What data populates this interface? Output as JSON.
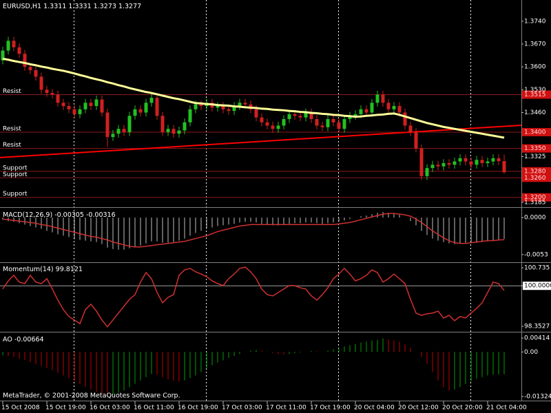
{
  "chart_data": [
    {
      "type": "candlestick",
      "title": "EURUSD,H1",
      "categories": [
        "15 Oct 2008",
        null,
        null,
        null,
        null,
        null,
        null,
        null,
        "15 Oct 19:00",
        null,
        null,
        null,
        null,
        null,
        null,
        null,
        "16 Oct 03:00",
        null,
        null,
        null,
        null,
        null,
        null,
        null,
        "16 Oct 11:00",
        null,
        null,
        null,
        null,
        null,
        null,
        null,
        "16 Oct 19:00",
        null,
        null,
        null,
        null,
        null,
        null,
        null,
        "17 Oct 03:00",
        null,
        null,
        null,
        null,
        null,
        null,
        null,
        "17 Oct 11:00",
        null,
        null,
        null,
        null,
        null,
        null,
        null,
        "17 Oct 19:00",
        null,
        null,
        null,
        null,
        null,
        null,
        null,
        "20 Oct 04:00",
        null,
        null,
        null,
        null,
        null,
        null,
        null,
        "20 Oct 12:00",
        null,
        null,
        null,
        null,
        null,
        null,
        null,
        "20 Oct 20:00",
        null,
        null,
        null,
        null,
        null,
        null,
        null,
        "21 Oct 04:00",
        null,
        null,
        null
      ],
      "open": [
        1.362,
        1.365,
        1.368,
        1.366,
        1.364,
        1.36,
        1.359,
        1.357,
        1.353,
        1.352,
        1.3515,
        1.349,
        1.348,
        1.347,
        1.3455,
        1.347,
        1.349,
        1.348,
        1.35,
        1.346,
        1.3385,
        1.3395,
        1.341,
        1.34,
        1.345,
        1.347,
        1.346,
        1.349,
        1.3505,
        1.345,
        1.34,
        1.341,
        1.3395,
        1.3405,
        1.343,
        1.347,
        1.3485,
        1.348,
        1.349,
        1.3475,
        1.348,
        1.347,
        1.3465,
        1.348,
        1.349,
        1.3485,
        1.347,
        1.3445,
        1.343,
        1.342,
        1.341,
        1.342,
        1.344,
        1.3455,
        1.345,
        1.3445,
        1.346,
        1.344,
        1.342,
        1.3415,
        1.344,
        1.343,
        1.341,
        1.344,
        1.345,
        1.3455,
        1.347,
        1.346,
        1.349,
        1.3515,
        1.349,
        1.347,
        1.348,
        1.346,
        1.342,
        1.34,
        1.335,
        1.3265,
        1.329,
        1.33,
        1.3295,
        1.3305,
        1.33,
        1.331,
        1.332,
        1.331,
        1.33,
        1.3315,
        1.3305,
        1.331,
        1.332,
        1.3311
      ],
      "high": [
        1.3662,
        1.3692,
        1.3692,
        1.3672,
        1.3652,
        1.3612,
        1.3602,
        1.3582,
        1.3542,
        1.3532,
        1.3527,
        1.3502,
        1.3492,
        1.3482,
        1.3482,
        1.3502,
        1.3502,
        1.3512,
        1.3512,
        1.3472,
        1.3407,
        1.3422,
        1.3422,
        1.3462,
        1.3482,
        1.3482,
        1.3502,
        1.3517,
        1.3517,
        1.3462,
        1.3422,
        1.3422,
        1.3417,
        1.3442,
        1.3482,
        1.3497,
        1.3497,
        1.3502,
        1.3502,
        1.3492,
        1.3492,
        1.3482,
        1.3492,
        1.3502,
        1.3502,
        1.3497,
        1.3482,
        1.3457,
        1.3442,
        1.3432,
        1.3432,
        1.3452,
        1.3467,
        1.3467,
        1.3462,
        1.3472,
        1.3472,
        1.3452,
        1.3432,
        1.3452,
        1.3452,
        1.3442,
        1.3452,
        1.3462,
        1.3467,
        1.3482,
        1.3482,
        1.3502,
        1.3527,
        1.3527,
        1.3502,
        1.3492,
        1.3492,
        1.3472,
        1.3432,
        1.3412,
        1.3362,
        1.3302,
        1.3312,
        1.3312,
        1.3317,
        1.3317,
        1.3322,
        1.3332,
        1.3332,
        1.3322,
        1.3327,
        1.3327,
        1.3322,
        1.3332,
        1.3332,
        1.3331
      ],
      "low": [
        1.3608,
        1.3638,
        1.3648,
        1.3628,
        1.3588,
        1.3578,
        1.3558,
        1.3518,
        1.3508,
        1.3503,
        1.3478,
        1.3468,
        1.3458,
        1.3443,
        1.3443,
        1.3458,
        1.3468,
        1.3468,
        1.3448,
        1.3355,
        1.3373,
        1.3383,
        1.3388,
        1.3388,
        1.3438,
        1.3448,
        1.3448,
        1.3478,
        1.3438,
        1.3388,
        1.3388,
        1.3383,
        1.3383,
        1.3393,
        1.3418,
        1.3458,
        1.3468,
        1.3468,
        1.3463,
        1.3463,
        1.3458,
        1.3453,
        1.3453,
        1.3468,
        1.3473,
        1.3458,
        1.3433,
        1.3418,
        1.3408,
        1.3398,
        1.3398,
        1.3408,
        1.3428,
        1.3438,
        1.3433,
        1.3433,
        1.3428,
        1.3408,
        1.3403,
        1.3403,
        1.3418,
        1.3398,
        1.3398,
        1.3428,
        1.3438,
        1.3443,
        1.3448,
        1.3448,
        1.3478,
        1.3478,
        1.3458,
        1.3458,
        1.3448,
        1.3408,
        1.3388,
        1.3338,
        1.3253,
        1.3253,
        1.3278,
        1.3283,
        1.3283,
        1.3288,
        1.3288,
        1.3298,
        1.3298,
        1.3288,
        1.3288,
        1.3293,
        1.3293,
        1.3298,
        1.3299,
        1.3273
      ],
      "close": [
        1.365,
        1.368,
        1.366,
        1.364,
        1.36,
        1.359,
        1.357,
        1.353,
        1.352,
        1.3515,
        1.349,
        1.348,
        1.347,
        1.3455,
        1.347,
        1.349,
        1.348,
        1.35,
        1.346,
        1.3385,
        1.3395,
        1.341,
        1.34,
        1.345,
        1.347,
        1.346,
        1.349,
        1.3505,
        1.345,
        1.34,
        1.341,
        1.3395,
        1.3405,
        1.343,
        1.347,
        1.3485,
        1.348,
        1.349,
        1.3475,
        1.348,
        1.347,
        1.3465,
        1.348,
        1.349,
        1.3485,
        1.347,
        1.3445,
        1.343,
        1.342,
        1.341,
        1.342,
        1.344,
        1.3455,
        1.345,
        1.3445,
        1.346,
        1.344,
        1.342,
        1.3415,
        1.344,
        1.343,
        1.341,
        1.344,
        1.345,
        1.3455,
        1.347,
        1.346,
        1.349,
        1.3515,
        1.349,
        1.347,
        1.348,
        1.346,
        1.342,
        1.34,
        1.335,
        1.3265,
        1.329,
        1.33,
        1.3295,
        1.3305,
        1.33,
        1.331,
        1.332,
        1.331,
        1.33,
        1.3315,
        1.3305,
        1.331,
        1.332,
        1.3311,
        1.3277
      ],
      "up_color": "#22c022",
      "down_color": "#d02020",
      "ma": {
        "color": "#ffff99",
        "values": [
          1.3625,
          1.3622,
          1.3618,
          1.3615,
          1.3612,
          1.3608,
          1.3605,
          1.3601,
          1.3598,
          1.3594,
          1.3591,
          1.3588,
          1.3584,
          1.358,
          1.3575,
          1.3571,
          1.3566,
          1.3562,
          1.3558,
          1.3553,
          1.3549,
          1.3544,
          1.354,
          1.3535,
          1.3531,
          1.3527,
          1.3523,
          1.352,
          1.3516,
          1.3512,
          1.3508,
          1.3504,
          1.3501,
          1.3497,
          1.3493,
          1.3489,
          1.3488,
          1.3486,
          1.3485,
          1.3483,
          1.3482,
          1.3481,
          1.3479,
          1.3478,
          1.3476,
          1.3475,
          1.3474,
          1.3472,
          1.3471,
          1.3469,
          1.3468,
          1.3467,
          1.3465,
          1.3464,
          1.3462,
          1.3461,
          1.3459,
          1.3458,
          1.3456,
          1.3455,
          1.3453,
          1.3452,
          1.345,
          1.3449,
          1.3447,
          1.3448,
          1.345,
          1.3451,
          1.3453,
          1.3454,
          1.3456,
          1.3457,
          1.3453,
          1.3448,
          1.3443,
          1.3438,
          1.3433,
          1.3428,
          1.3424,
          1.342,
          1.3416,
          1.3413,
          1.341,
          1.3407,
          1.3404,
          1.3401,
          1.3398,
          1.3395,
          1.3392,
          1.3389,
          1.3386,
          1.3383
        ]
      },
      "trendline": {
        "color": "#ff0000",
        "values": [
          1.3322,
          1.3421
        ]
      },
      "level_color": "#8b1a1a",
      "levels": [
        {
          "name": "Resist",
          "price": {
            "value": 1.3515,
            "label": "1.3515"
          }
        },
        {
          "name": "Resist",
          "price": {
            "value": 1.34,
            "label": "1.3400"
          }
        },
        {
          "name": "Resist",
          "price": {
            "value": 1.335,
            "label": "1.3350"
          }
        },
        {
          "name": "Support",
          "price": {
            "value": 1.328,
            "label": "1.3280"
          }
        },
        {
          "name": "Support",
          "price": {
            "value": 1.326,
            "label": "1.3260"
          }
        },
        {
          "name": "Support",
          "price": {
            "value": 1.32,
            "label": "1.3200"
          }
        }
      ],
      "ylim": [
        1.3172,
        1.3805
      ],
      "yticks": [
        {
          "value": 1.374,
          "label": "1.3740"
        },
        {
          "value": 1.367,
          "label": "1.3670"
        },
        {
          "value": 1.36,
          "label": "1.3600"
        },
        {
          "value": 1.353,
          "label": "1.3530"
        },
        {
          "value": 1.346,
          "label": "1.3460"
        },
        1.3325,
        1.3185
      ]
    },
    {
      "type": "macd",
      "title": "MACD(12,26,9)",
      "histogram": {
        "color": "#c0c0c0",
        "values": [
          -0.0003,
          -0.0005,
          -0.0006,
          -0.0008,
          -0.001,
          -0.0012,
          -0.0014,
          -0.0016,
          -0.0019,
          -0.0021,
          -0.0024,
          -0.0026,
          -0.0028,
          -0.0031,
          -0.0032,
          -0.0033,
          -0.0034,
          -0.0035,
          -0.0038,
          -0.0043,
          -0.0045,
          -0.0046,
          -0.0046,
          -0.0044,
          -0.0042,
          -0.004,
          -0.0037,
          -0.0034,
          -0.0034,
          -0.0036,
          -0.0036,
          -0.0035,
          -0.0033,
          -0.003,
          -0.0026,
          -0.0022,
          -0.0019,
          -0.0016,
          -0.0014,
          -0.0012,
          -0.0011,
          -0.001,
          -0.0009,
          -0.0007,
          -0.0006,
          -0.0006,
          -0.0007,
          -0.0009,
          -0.001,
          -0.0011,
          -0.0011,
          -0.001,
          -0.0009,
          -0.0008,
          -0.0008,
          -0.0007,
          -0.0007,
          -0.0008,
          -0.0009,
          -0.0008,
          -0.0007,
          -0.0006,
          -0.0004,
          -0.0002,
          0.0,
          0.0002,
          0.0003,
          0.0005,
          0.0007,
          0.0008,
          0.0007,
          0.0006,
          0.0004,
          0.0,
          -0.0005,
          -0.0011,
          -0.0019,
          -0.0025,
          -0.003,
          -0.0033,
          -0.0035,
          -0.0037,
          -0.0038,
          -0.0037,
          -0.0036,
          -0.0036,
          -0.0036,
          -0.0035,
          -0.0034,
          -0.0033,
          -0.0032,
          -0.00305
        ]
      },
      "signal": {
        "color": "#d03030",
        "values": [
          -0.0002,
          -0.0003,
          -0.0004,
          -0.0005,
          -0.0006,
          -0.0007,
          -0.0008,
          -0.001,
          -0.0011,
          -0.0013,
          -0.0015,
          -0.0017,
          -0.0019,
          -0.0021,
          -0.0023,
          -0.0025,
          -0.0027,
          -0.0028,
          -0.003,
          -0.0032,
          -0.0035,
          -0.0037,
          -0.0039,
          -0.0041,
          -0.0042,
          -0.0042,
          -0.0041,
          -0.004,
          -0.0039,
          -0.0038,
          -0.0037,
          -0.0036,
          -0.0035,
          -0.0034,
          -0.0032,
          -0.003,
          -0.0028,
          -0.0026,
          -0.0023,
          -0.002,
          -0.0018,
          -0.0016,
          -0.0014,
          -0.0012,
          -0.0011,
          -0.001,
          -0.001,
          -0.001,
          -0.001,
          -0.001,
          -0.001,
          -0.001,
          -0.001,
          -0.001,
          -0.001,
          -0.001,
          -0.001,
          -0.001,
          -0.001,
          -0.001,
          -0.001,
          -0.0009,
          -0.0008,
          -0.0007,
          -0.0005,
          -0.0003,
          -0.0001,
          0.0001,
          0.0003,
          0.0005,
          0.0006,
          0.0006,
          0.0005,
          0.0004,
          0.0002,
          -0.0002,
          -0.0007,
          -0.0013,
          -0.0019,
          -0.0024,
          -0.0029,
          -0.0033,
          -0.0036,
          -0.0037,
          -0.0037,
          -0.0036,
          -0.0035,
          -0.0034,
          -0.0033,
          -0.0033,
          -0.0032,
          -0.00316
        ]
      },
      "ylim": [
        -0.0063,
        0.0013
      ],
      "yticks": [
        {
          "value": 0,
          "label": "0.0000"
        },
        -0.0053
      ]
    },
    {
      "type": "line",
      "title": "Momentum(14)",
      "color": "#d03030",
      "values": [
        99.87,
        100.2,
        100.43,
        100.15,
        100.09,
        100.43,
        100.15,
        100.09,
        100.29,
        99.87,
        99.42,
        99.03,
        98.75,
        98.61,
        98.46,
        99.03,
        99.25,
        98.97,
        98.61,
        98.33,
        98.61,
        98.89,
        99.17,
        99.45,
        99.64,
        100.15,
        100.54,
        100.29,
        99.73,
        99.31,
        99.53,
        99.64,
        100.43,
        100.65,
        100.71,
        100.57,
        100.48,
        100.37,
        100.2,
        100.09,
        100.01,
        100.29,
        100.48,
        100.71,
        100.76,
        100.57,
        100.29,
        99.87,
        99.64,
        99.59,
        99.73,
        99.87,
        100.01,
        100.01,
        99.92,
        99.87,
        99.59,
        99.42,
        99.64,
        99.92,
        100.29,
        100.48,
        100.71,
        100.48,
        100.2,
        100.29,
        100.43,
        100.65,
        100.54,
        100.15,
        100.29,
        100.48,
        100.29,
        100.09,
        99.45,
        98.89,
        98.8,
        98.86,
        98.89,
        98.97,
        98.69,
        98.8,
        98.58,
        98.75,
        98.69,
        98.89,
        99.08,
        99.31,
        99.73,
        100.15,
        100.09,
        99.8121
      ],
      "levels": [
        100
      ],
      "level_color": "#a0a0a0",
      "ylim": [
        98.157,
        100.903
      ],
      "yticks": [
        100.735,
        {
          "value": 100,
          "label": "100.0000"
        },
        98.3527
      ]
    },
    {
      "type": "bar",
      "title": "AO",
      "up_color": "#00a000",
      "down_color": "#c00000",
      "values": [
        -0.001,
        -0.0012,
        -0.0015,
        -0.002,
        -0.0024,
        -0.003,
        -0.0036,
        -0.0042,
        -0.0048,
        -0.0055,
        -0.0062,
        -0.007,
        -0.0078,
        -0.0088,
        -0.0096,
        -0.0104,
        -0.0112,
        -0.0118,
        -0.0124,
        -0.013,
        -0.0128,
        -0.0122,
        -0.0115,
        -0.0105,
        -0.0095,
        -0.0085,
        -0.0075,
        -0.0065,
        -0.0068,
        -0.0075,
        -0.0082,
        -0.0086,
        -0.0088,
        -0.0085,
        -0.0078,
        -0.007,
        -0.006,
        -0.005,
        -0.004,
        -0.0032,
        -0.0025,
        -0.0018,
        -0.0012,
        -0.0006,
        0.0,
        0.0004,
        0.0006,
        0.0004,
        0.0001,
        -0.0003,
        -0.0006,
        -0.0008,
        -0.0006,
        -0.0004,
        -0.0002,
        0.0,
        0.0003,
        0.0002,
        0.0,
        0.0004,
        0.0008,
        0.0012,
        0.0016,
        0.002,
        0.0024,
        0.0028,
        0.0031,
        0.0034,
        0.0036,
        0.004,
        0.0038,
        0.0035,
        0.003,
        0.0022,
        0.0012,
        0.0,
        -0.0015,
        -0.0035,
        -0.006,
        -0.0085,
        -0.0105,
        -0.0115,
        -0.0112,
        -0.0105,
        -0.0096,
        -0.0088,
        -0.008,
        -0.0075,
        -0.007,
        -0.0068,
        -0.0067,
        -0.00664
      ],
      "ylim": [
        -0.0145,
        0.0056
      ],
      "yticks": [
        0.00414,
        {
          "value": 0,
          "label": "0.00"
        },
        -0.01324
      ],
      "footer": "MetaTrader, © 2001-2008 MetaQuotes Software Corp."
    }
  ]
}
